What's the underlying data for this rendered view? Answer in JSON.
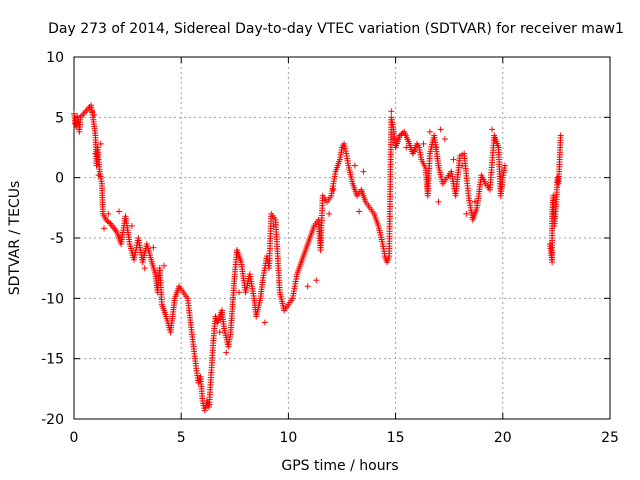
{
  "chart_data": {
    "type": "scatter",
    "title": "Day 273 of 2014, Sidereal Day-to-day VTEC variation (SDTVAR) for receiver maw1",
    "xlabel": "GPS time / hours",
    "ylabel": "SDTVAR / TECUs",
    "xlim": [
      0,
      25
    ],
    "ylim": [
      -20,
      10
    ],
    "grid": true,
    "marker": "+",
    "series_color": "#ff0000",
    "xticks": [
      "0",
      "5",
      "10",
      "15",
      "20",
      "25"
    ],
    "yticks": [
      "-20",
      "-15",
      "-10",
      "-5",
      "0",
      "5",
      "10"
    ],
    "series": [
      {
        "name": "maw1",
        "path": [
          [
            0.0,
            5.3
          ],
          [
            0.1,
            4.2
          ],
          [
            0.2,
            4.8
          ],
          [
            0.25,
            3.8
          ],
          [
            0.3,
            5.0
          ],
          [
            0.8,
            6.0
          ],
          [
            0.9,
            4.8
          ],
          [
            1.0,
            3.5
          ],
          [
            1.05,
            1.0
          ],
          [
            1.1,
            2.5
          ],
          [
            1.2,
            0.5
          ],
          [
            1.3,
            -0.5
          ],
          [
            1.35,
            -3.0
          ],
          [
            1.5,
            -3.5
          ],
          [
            1.7,
            -3.8
          ],
          [
            2.0,
            -4.5
          ],
          [
            2.2,
            -5.5
          ],
          [
            2.4,
            -3.2
          ],
          [
            2.6,
            -5.5
          ],
          [
            2.8,
            -6.8
          ],
          [
            3.0,
            -5.0
          ],
          [
            3.2,
            -7.0
          ],
          [
            3.4,
            -5.5
          ],
          [
            3.6,
            -6.8
          ],
          [
            3.8,
            -8.0
          ],
          [
            3.9,
            -9.5
          ],
          [
            4.0,
            -7.5
          ],
          [
            4.1,
            -10.5
          ],
          [
            4.3,
            -11.5
          ],
          [
            4.5,
            -12.8
          ],
          [
            4.6,
            -11.5
          ],
          [
            4.7,
            -10.0
          ],
          [
            4.9,
            -9.0
          ],
          [
            5.1,
            -9.5
          ],
          [
            5.3,
            -10.0
          ],
          [
            5.7,
            -15.8
          ],
          [
            5.8,
            -17.0
          ],
          [
            5.9,
            -16.5
          ],
          [
            6.0,
            -18.5
          ],
          [
            6.1,
            -19.3
          ],
          [
            6.2,
            -18.5
          ],
          [
            6.3,
            -19.0
          ],
          [
            6.5,
            -13.5
          ],
          [
            6.6,
            -11.5
          ],
          [
            6.7,
            -12.0
          ],
          [
            6.9,
            -11.0
          ],
          [
            7.0,
            -12.5
          ],
          [
            7.2,
            -14.0
          ],
          [
            7.3,
            -13.0
          ],
          [
            7.4,
            -10.5
          ],
          [
            7.5,
            -8.0
          ],
          [
            7.6,
            -6.0
          ],
          [
            7.8,
            -7.0
          ],
          [
            8.0,
            -9.5
          ],
          [
            8.2,
            -8.0
          ],
          [
            8.4,
            -10.0
          ],
          [
            8.5,
            -11.5
          ],
          [
            8.7,
            -10.0
          ],
          [
            8.8,
            -8.5
          ],
          [
            9.0,
            -6.5
          ],
          [
            9.1,
            -7.5
          ],
          [
            9.2,
            -3.0
          ],
          [
            9.4,
            -3.5
          ],
          [
            9.5,
            -6.5
          ],
          [
            9.6,
            -9.5
          ],
          [
            9.8,
            -11.0
          ],
          [
            10.0,
            -10.5
          ],
          [
            10.2,
            -10.0
          ],
          [
            10.4,
            -8.0
          ],
          [
            10.6,
            -7.0
          ],
          [
            10.8,
            -6.0
          ],
          [
            11.0,
            -5.0
          ],
          [
            11.2,
            -4.0
          ],
          [
            11.4,
            -3.5
          ],
          [
            11.5,
            -6.0
          ],
          [
            11.6,
            -1.5
          ],
          [
            11.8,
            -2.0
          ],
          [
            12.0,
            -1.5
          ],
          [
            12.2,
            0.5
          ],
          [
            12.4,
            1.5
          ],
          [
            12.5,
            2.5
          ],
          [
            12.6,
            2.8
          ],
          [
            12.7,
            2.0
          ],
          [
            12.8,
            1.0
          ],
          [
            13.0,
            -0.5
          ],
          [
            13.2,
            -1.5
          ],
          [
            13.4,
            -1.0
          ],
          [
            13.6,
            -2.0
          ],
          [
            13.8,
            -2.5
          ],
          [
            14.0,
            -3.0
          ],
          [
            14.2,
            -4.0
          ],
          [
            14.4,
            -5.5
          ],
          [
            14.5,
            -6.5
          ],
          [
            14.6,
            -7.0
          ],
          [
            14.7,
            -6.5
          ],
          [
            14.8,
            5.0
          ],
          [
            14.9,
            4.0
          ],
          [
            15.0,
            2.5
          ],
          [
            15.2,
            3.5
          ],
          [
            15.4,
            3.8
          ],
          [
            15.6,
            3.0
          ],
          [
            15.8,
            2.0
          ],
          [
            16.0,
            2.8
          ],
          [
            16.1,
            2.5
          ],
          [
            16.2,
            1.5
          ],
          [
            16.4,
            0.8
          ],
          [
            16.5,
            -1.5
          ],
          [
            16.6,
            2.0
          ],
          [
            16.8,
            3.5
          ],
          [
            17.0,
            1.0
          ],
          [
            17.2,
            -0.5
          ],
          [
            17.4,
            0.0
          ],
          [
            17.6,
            0.5
          ],
          [
            17.8,
            -1.5
          ],
          [
            18.0,
            1.8
          ],
          [
            18.2,
            2.0
          ],
          [
            18.4,
            -1.5
          ],
          [
            18.6,
            -3.5
          ],
          [
            18.8,
            -2.5
          ],
          [
            19.0,
            0.2
          ],
          [
            19.2,
            -0.5
          ],
          [
            19.4,
            -1.0
          ],
          [
            19.6,
            3.5
          ],
          [
            19.8,
            2.5
          ],
          [
            19.9,
            -1.5
          ],
          [
            20.0,
            0.0
          ],
          [
            20.1,
            1.0
          ]
        ],
        "points_extra": [
          [
            14.8,
            5.5
          ],
          [
            17.1,
            4.0
          ],
          [
            17.3,
            3.2
          ],
          [
            17.0,
            -2.0
          ],
          [
            16.6,
            3.8
          ],
          [
            19.5,
            4.0
          ],
          [
            4.2,
            -7.3
          ],
          [
            3.3,
            -7.5
          ],
          [
            3.7,
            -5.8
          ],
          [
            2.1,
            -2.8
          ],
          [
            2.7,
            -4.0
          ],
          [
            11.9,
            -3.0
          ],
          [
            12.1,
            -1.0
          ],
          [
            13.3,
            -2.8
          ],
          [
            8.9,
            -12.0
          ],
          [
            9.3,
            -4.0
          ],
          [
            10.9,
            -9.0
          ],
          [
            11.3,
            -8.5
          ],
          [
            7.7,
            -9.5
          ],
          [
            7.1,
            -14.5
          ],
          [
            6.8,
            -12.8
          ],
          [
            13.1,
            1.0
          ],
          [
            13.5,
            0.5
          ],
          [
            15.5,
            2.5
          ],
          [
            18.1,
            1.0
          ],
          [
            18.7,
            -2.0
          ],
          [
            15.9,
            2.2
          ],
          [
            16.3,
            2.8
          ],
          [
            16.9,
            2.5
          ],
          [
            17.7,
            1.5
          ],
          [
            18.3,
            -3.0
          ],
          [
            1.15,
            0.2
          ],
          [
            1.25,
            2.8
          ],
          [
            0.85,
            5.5
          ],
          [
            0.95,
            5.2
          ],
          [
            1.0,
            2.0
          ],
          [
            0.05,
            4.5
          ],
          [
            0.15,
            5.1
          ],
          [
            0.28,
            4.2
          ],
          [
            1.4,
            -4.2
          ],
          [
            1.6,
            -3.0
          ]
        ],
        "segment2_path": [
          [
            22.2,
            -5.5
          ],
          [
            22.3,
            -7.0
          ],
          [
            22.3,
            -3.0
          ],
          [
            22.35,
            -1.5
          ],
          [
            22.4,
            -4.0
          ],
          [
            22.5,
            -2.0
          ],
          [
            22.55,
            0.0
          ],
          [
            22.6,
            -0.5
          ],
          [
            22.65,
            1.5
          ],
          [
            22.7,
            3.5
          ]
        ]
      }
    ]
  }
}
